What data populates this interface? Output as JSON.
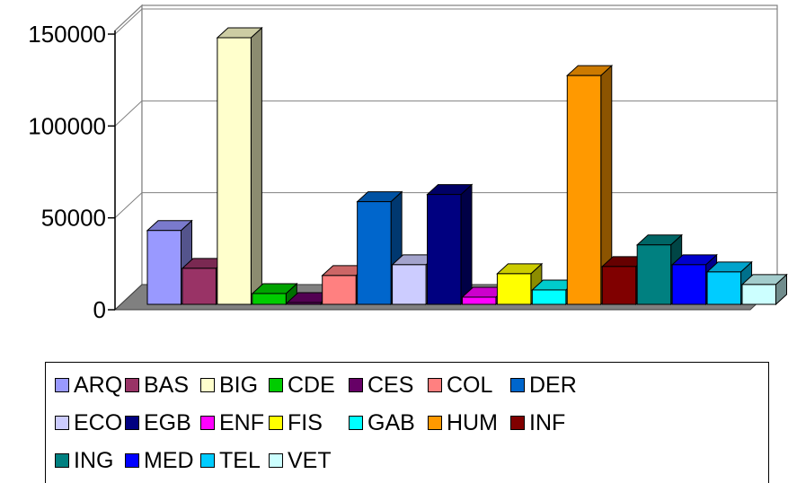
{
  "chart_data": {
    "type": "bar",
    "title": "",
    "xlabel": "",
    "ylabel": "",
    "ylim": [
      0,
      150000
    ],
    "yticks": [
      {
        "value": 0,
        "label": "0"
      },
      {
        "value": 50000,
        "label": "50000"
      },
      {
        "value": 100000,
        "label": "100000"
      },
      {
        "value": 150000,
        "label": "150000"
      }
    ],
    "grid": true,
    "legend_position": "bottom",
    "series": [
      {
        "name": "ARQ",
        "value": 41000,
        "color": "#9999FF"
      },
      {
        "name": "BAS",
        "value": 20000,
        "color": "#993366"
      },
      {
        "name": "BIG",
        "value": 148000,
        "color": "#FFFFCC"
      },
      {
        "name": "CDE",
        "value": 6000,
        "color": "#00CC00"
      },
      {
        "name": "CES",
        "value": 1000,
        "color": "#660066"
      },
      {
        "name": "COL",
        "value": 16000,
        "color": "#FF8080"
      },
      {
        "name": "DER",
        "value": 57000,
        "color": "#0066CC"
      },
      {
        "name": "ECO",
        "value": 22000,
        "color": "#CCCCFF"
      },
      {
        "name": "EGB",
        "value": 61000,
        "color": "#000080"
      },
      {
        "name": "ENF",
        "value": 4000,
        "color": "#FF00FF"
      },
      {
        "name": "FIS",
        "value": 17000,
        "color": "#FFFF00"
      },
      {
        "name": "GAB",
        "value": 8000,
        "color": "#00FFFF"
      },
      {
        "name": "HUM",
        "value": 127000,
        "color": "#FF9900"
      },
      {
        "name": "INF",
        "value": 21000,
        "color": "#800000"
      },
      {
        "name": "ING",
        "value": 33000,
        "color": "#008080"
      },
      {
        "name": "MED",
        "value": 22000,
        "color": "#0000FF"
      },
      {
        "name": "TEL",
        "value": 18000,
        "color": "#00CCFF"
      },
      {
        "name": "VET",
        "value": 11000,
        "color": "#CCFFFF"
      }
    ]
  }
}
